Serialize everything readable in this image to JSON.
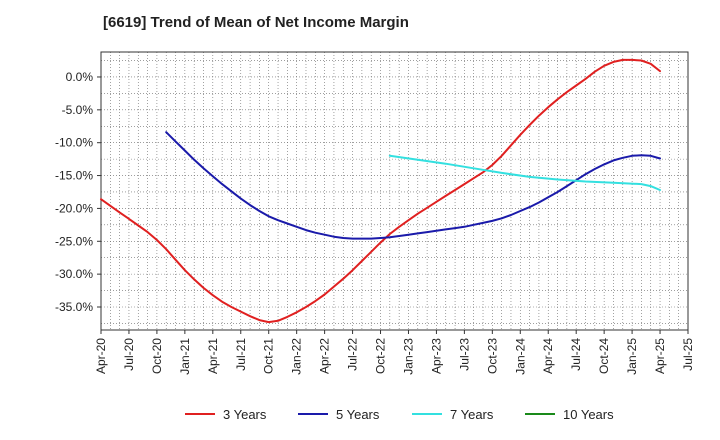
{
  "chart_data": {
    "type": "line",
    "title": "[6619]  Trend of Mean of Net Income Margin",
    "xlabel": "",
    "ylabel": "",
    "x_ticks": [
      "Apr-20",
      "Jul-20",
      "Oct-20",
      "Jan-21",
      "Apr-21",
      "Jul-21",
      "Oct-21",
      "Jan-22",
      "Apr-22",
      "Jul-22",
      "Oct-22",
      "Jan-23",
      "Apr-23",
      "Jul-23",
      "Oct-23",
      "Jan-24",
      "Apr-24",
      "Jul-24",
      "Oct-24",
      "Jan-25",
      "Apr-25",
      "Jul-25"
    ],
    "y_ticks": [
      "0.0%",
      "-5.0%",
      "-10.0%",
      "-15.0%",
      "-20.0%",
      "-25.0%",
      "-30.0%",
      "-35.0%"
    ],
    "y_tick_values": [
      0,
      -5,
      -10,
      -15,
      -20,
      -25,
      -30,
      -35
    ],
    "ylim": [
      -38.5,
      3.8
    ],
    "grid": true,
    "legend_position": "bottom",
    "series": [
      {
        "name": "3 Years",
        "color": "#e02020",
        "x": [
          "Apr-20",
          "May-20",
          "Jun-20",
          "Jul-20",
          "Aug-20",
          "Sep-20",
          "Oct-20",
          "Nov-20",
          "Dec-20",
          "Jan-21",
          "Feb-21",
          "Mar-21",
          "Apr-21",
          "May-21",
          "Jun-21",
          "Jul-21",
          "Aug-21",
          "Sep-21",
          "Oct-21",
          "Nov-21",
          "Dec-21",
          "Jan-22",
          "Feb-22",
          "Mar-22",
          "Apr-22",
          "May-22",
          "Jun-22",
          "Jul-22",
          "Aug-22",
          "Sep-22",
          "Oct-22",
          "Nov-22",
          "Dec-22",
          "Jan-23",
          "Feb-23",
          "Mar-23",
          "Apr-23",
          "May-23",
          "Jun-23",
          "Jul-23",
          "Aug-23",
          "Sep-23",
          "Oct-23",
          "Nov-23",
          "Dec-23",
          "Jan-24",
          "Feb-24",
          "Mar-24",
          "Apr-24",
          "May-24",
          "Jun-24",
          "Jul-24",
          "Aug-24",
          "Sep-24",
          "Oct-24",
          "Nov-24",
          "Dec-24",
          "Jan-25",
          "Feb-25",
          "Mar-25",
          "Apr-25"
        ],
        "values": [
          -18.6,
          -19.6,
          -20.6,
          -21.6,
          -22.6,
          -23.6,
          -24.8,
          -26.2,
          -27.8,
          -29.4,
          -30.8,
          -32.1,
          -33.2,
          -34.2,
          -35.0,
          -35.7,
          -36.4,
          -37.0,
          -37.3,
          -37.1,
          -36.5,
          -35.8,
          -35.0,
          -34.1,
          -33.1,
          -31.9,
          -30.7,
          -29.4,
          -28.0,
          -26.6,
          -25.2,
          -23.9,
          -22.8,
          -21.8,
          -20.8,
          -19.9,
          -19.0,
          -18.1,
          -17.2,
          -16.3,
          -15.4,
          -14.5,
          -13.4,
          -12.0,
          -10.4,
          -8.8,
          -7.3,
          -5.9,
          -4.6,
          -3.4,
          -2.3,
          -1.3,
          -0.3,
          0.8,
          1.7,
          2.3,
          2.6,
          2.6,
          2.5,
          2.0,
          0.9
        ]
      },
      {
        "name": "5 Years",
        "color": "#1a1aaa",
        "x": [
          "Nov-20",
          "Dec-20",
          "Jan-21",
          "Feb-21",
          "Mar-21",
          "Apr-21",
          "May-21",
          "Jun-21",
          "Jul-21",
          "Aug-21",
          "Sep-21",
          "Oct-21",
          "Nov-21",
          "Dec-21",
          "Jan-22",
          "Feb-22",
          "Mar-22",
          "Apr-22",
          "May-22",
          "Jun-22",
          "Jul-22",
          "Aug-22",
          "Sep-22",
          "Oct-22",
          "Nov-22",
          "Dec-22",
          "Jan-23",
          "Feb-23",
          "Mar-23",
          "Apr-23",
          "May-23",
          "Jun-23",
          "Jul-23",
          "Aug-23",
          "Sep-23",
          "Oct-23",
          "Nov-23",
          "Dec-23",
          "Jan-24",
          "Feb-24",
          "Mar-24",
          "Apr-24",
          "May-24",
          "Jun-24",
          "Jul-24",
          "Aug-24",
          "Sep-24",
          "Oct-24",
          "Nov-24",
          "Dec-24",
          "Jan-25",
          "Feb-25",
          "Mar-25",
          "Apr-25"
        ],
        "values": [
          -8.4,
          -9.8,
          -11.2,
          -12.6,
          -13.9,
          -15.1,
          -16.3,
          -17.4,
          -18.5,
          -19.5,
          -20.4,
          -21.2,
          -21.8,
          -22.3,
          -22.8,
          -23.3,
          -23.7,
          -24.0,
          -24.3,
          -24.5,
          -24.6,
          -24.6,
          -24.6,
          -24.5,
          -24.4,
          -24.2,
          -24.0,
          -23.8,
          -23.6,
          -23.4,
          -23.2,
          -23.0,
          -22.8,
          -22.5,
          -22.2,
          -21.9,
          -21.5,
          -21.0,
          -20.4,
          -19.8,
          -19.1,
          -18.3,
          -17.5,
          -16.6,
          -15.7,
          -14.8,
          -14.0,
          -13.3,
          -12.7,
          -12.3,
          -12.0,
          -11.9,
          -12.0,
          -12.4
        ]
      },
      {
        "name": "7 Years",
        "color": "#33e0e0",
        "x": [
          "Nov-22",
          "Feb-23",
          "May-23",
          "Aug-23",
          "Nov-23",
          "Feb-24",
          "May-24",
          "Aug-24",
          "Nov-24",
          "Feb-25",
          "Mar-25",
          "Apr-25"
        ],
        "values": [
          -12.0,
          -12.6,
          -13.2,
          -13.9,
          -14.6,
          -15.2,
          -15.6,
          -15.9,
          -16.1,
          -16.3,
          -16.6,
          -17.2
        ]
      },
      {
        "name": "10 Years",
        "color": "#1a8a1a",
        "x": [],
        "values": []
      }
    ]
  }
}
